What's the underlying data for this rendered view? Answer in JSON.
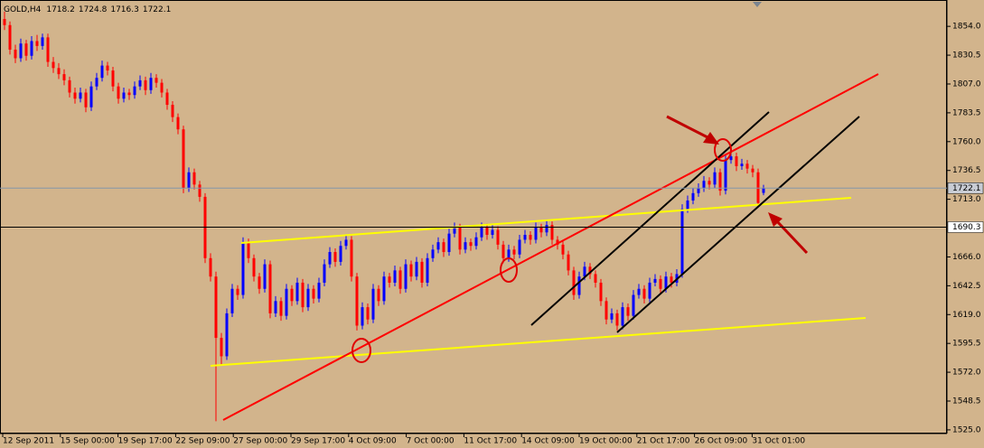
{
  "chart_data": {
    "type": "candlestick",
    "title": "GOLD,H4",
    "up_color": "#0000ff",
    "down_color": "#ff0000",
    "ylim": [
      1522,
      1874
    ],
    "yticks": [
      {
        "value": 1854,
        "label": "1854.0"
      },
      {
        "value": 1830.5,
        "label": "1830.5"
      },
      {
        "value": 1807,
        "label": "1807.0"
      },
      {
        "value": 1783.5,
        "label": "1783.5"
      },
      {
        "value": 1760,
        "label": "1760.0"
      },
      {
        "value": 1736.5,
        "label": "1736.5"
      },
      {
        "value": 1713,
        "label": "1713.0"
      },
      {
        "value": 1666,
        "label": "1666.0"
      },
      {
        "value": 1642.5,
        "label": "1642.5"
      },
      {
        "value": 1619,
        "label": "1619.0"
      },
      {
        "value": 1595.5,
        "label": "1595.5"
      },
      {
        "value": 1572,
        "label": "1572.0"
      },
      {
        "value": 1548.5,
        "label": "1548.5"
      },
      {
        "value": 1525,
        "label": "1525.0"
      }
    ],
    "price_lines": [
      {
        "value": 1722.1,
        "color": "#8496a8"
      },
      {
        "value": 1690.3,
        "color": "#000000"
      }
    ],
    "x_labels": [
      "12 Sep 2011",
      "15 Sep 00:00",
      "19 Sep 17:00",
      "22 Sep 09:00",
      "27 Sep 00:00",
      "29 Sep 17:00",
      "4 Oct 09:00",
      "7 Oct 00:00",
      "11 Oct 17:00",
      "14 Oct 09:00",
      "19 Oct 00:00",
      "21 Oct 17:00",
      "26 Oct 09:00",
      "31 Oct 01:00"
    ],
    "candles": [
      [
        1860,
        1866,
        1851,
        1855
      ],
      [
        1855,
        1858,
        1831,
        1835
      ],
      [
        1835,
        1839,
        1824,
        1828
      ],
      [
        1828,
        1844,
        1825,
        1840
      ],
      [
        1840,
        1843,
        1826,
        1830
      ],
      [
        1830,
        1846,
        1827,
        1842
      ],
      [
        1842,
        1847,
        1834,
        1838
      ],
      [
        1838,
        1848,
        1835,
        1845
      ],
      [
        1845,
        1848,
        1821,
        1825
      ],
      [
        1825,
        1829,
        1816,
        1820
      ],
      [
        1820,
        1824,
        1811,
        1815
      ],
      [
        1815,
        1819,
        1806,
        1810
      ],
      [
        1810,
        1813,
        1796,
        1800
      ],
      [
        1800,
        1804,
        1791,
        1795
      ],
      [
        1795,
        1804,
        1792,
        1800
      ],
      [
        1800,
        1803,
        1784,
        1788
      ],
      [
        1788,
        1809,
        1785,
        1805
      ],
      [
        1805,
        1816,
        1802,
        1812
      ],
      [
        1812,
        1826,
        1809,
        1822
      ],
      [
        1822,
        1825,
        1814,
        1818
      ],
      [
        1818,
        1821,
        1801,
        1805
      ],
      [
        1805,
        1808,
        1791,
        1795
      ],
      [
        1795,
        1804,
        1792,
        1800
      ],
      [
        1800,
        1803,
        1794,
        1798
      ],
      [
        1798,
        1809,
        1795,
        1805
      ],
      [
        1805,
        1814,
        1802,
        1810
      ],
      [
        1810,
        1813,
        1798,
        1802
      ],
      [
        1802,
        1816,
        1799,
        1812
      ],
      [
        1812,
        1815,
        1804,
        1808
      ],
      [
        1808,
        1811,
        1796,
        1800
      ],
      [
        1800,
        1803,
        1786,
        1790
      ],
      [
        1790,
        1793,
        1776,
        1780
      ],
      [
        1780,
        1783,
        1766,
        1770
      ],
      [
        1770,
        1773,
        1718,
        1722
      ],
      [
        1722,
        1739,
        1719,
        1735
      ],
      [
        1735,
        1738,
        1721,
        1725
      ],
      [
        1725,
        1728,
        1711,
        1715
      ],
      [
        1715,
        1718,
        1661,
        1665
      ],
      [
        1665,
        1669,
        1646,
        1650
      ],
      [
        1650,
        1654,
        1532,
        1600
      ],
      [
        1600,
        1604,
        1578,
        1585
      ],
      [
        1585,
        1624,
        1582,
        1620
      ],
      [
        1620,
        1644,
        1617,
        1640
      ],
      [
        1640,
        1643,
        1631,
        1635
      ],
      [
        1635,
        1682,
        1632,
        1678
      ],
      [
        1678,
        1681,
        1661,
        1665
      ],
      [
        1665,
        1668,
        1646,
        1650
      ],
      [
        1650,
        1653,
        1636,
        1640
      ],
      [
        1640,
        1664,
        1637,
        1660
      ],
      [
        1660,
        1663,
        1616,
        1620
      ],
      [
        1620,
        1634,
        1617,
        1630
      ],
      [
        1630,
        1633,
        1614,
        1618
      ],
      [
        1618,
        1644,
        1615,
        1640
      ],
      [
        1640,
        1643,
        1626,
        1630
      ],
      [
        1630,
        1649,
        1627,
        1645
      ],
      [
        1645,
        1648,
        1621,
        1625
      ],
      [
        1625,
        1644,
        1622,
        1640
      ],
      [
        1640,
        1643,
        1628,
        1632
      ],
      [
        1632,
        1649,
        1629,
        1645
      ],
      [
        1645,
        1664,
        1642,
        1660
      ],
      [
        1660,
        1674,
        1657,
        1670
      ],
      [
        1670,
        1673,
        1658,
        1662
      ],
      [
        1662,
        1679,
        1659,
        1675
      ],
      [
        1675,
        1684,
        1672,
        1680
      ],
      [
        1680,
        1683,
        1646,
        1650
      ],
      [
        1650,
        1653,
        1606,
        1610
      ],
      [
        1610,
        1629,
        1607,
        1625
      ],
      [
        1625,
        1628,
        1611,
        1615
      ],
      [
        1615,
        1644,
        1612,
        1640
      ],
      [
        1640,
        1643,
        1626,
        1630
      ],
      [
        1630,
        1654,
        1627,
        1650
      ],
      [
        1650,
        1653,
        1641,
        1645
      ],
      [
        1645,
        1659,
        1642,
        1655
      ],
      [
        1655,
        1658,
        1636,
        1640
      ],
      [
        1640,
        1664,
        1637,
        1660
      ],
      [
        1660,
        1663,
        1646,
        1650
      ],
      [
        1650,
        1666,
        1647,
        1662
      ],
      [
        1662,
        1665,
        1641,
        1645
      ],
      [
        1645,
        1669,
        1642,
        1665
      ],
      [
        1665,
        1676,
        1662,
        1672
      ],
      [
        1672,
        1682,
        1669,
        1678
      ],
      [
        1678,
        1681,
        1666,
        1670
      ],
      [
        1670,
        1689,
        1667,
        1685
      ],
      [
        1685,
        1694,
        1682,
        1690
      ],
      [
        1690,
        1693,
        1668,
        1672
      ],
      [
        1672,
        1682,
        1669,
        1678
      ],
      [
        1678,
        1681,
        1671,
        1675
      ],
      [
        1675,
        1686,
        1672,
        1682
      ],
      [
        1682,
        1694,
        1679,
        1690
      ],
      [
        1690,
        1693,
        1680,
        1684
      ],
      [
        1684,
        1692,
        1681,
        1688
      ],
      [
        1688,
        1691,
        1672,
        1676
      ],
      [
        1676,
        1679,
        1661,
        1665
      ],
      [
        1665,
        1676,
        1662,
        1672
      ],
      [
        1672,
        1675,
        1664,
        1668
      ],
      [
        1668,
        1684,
        1665,
        1680
      ],
      [
        1680,
        1688,
        1677,
        1684
      ],
      [
        1684,
        1687,
        1676,
        1680
      ],
      [
        1680,
        1694,
        1677,
        1690
      ],
      [
        1690,
        1693,
        1682,
        1686
      ],
      [
        1686,
        1696,
        1683,
        1692
      ],
      [
        1692,
        1695,
        1676,
        1680
      ],
      [
        1680,
        1683,
        1672,
        1676
      ],
      [
        1676,
        1679,
        1664,
        1668
      ],
      [
        1668,
        1671,
        1651,
        1655
      ],
      [
        1655,
        1658,
        1631,
        1635
      ],
      [
        1635,
        1654,
        1632,
        1650
      ],
      [
        1650,
        1662,
        1647,
        1658
      ],
      [
        1658,
        1661,
        1648,
        1652
      ],
      [
        1652,
        1655,
        1641,
        1645
      ],
      [
        1645,
        1648,
        1626,
        1630
      ],
      [
        1630,
        1633,
        1611,
        1615
      ],
      [
        1615,
        1624,
        1612,
        1620
      ],
      [
        1620,
        1623,
        1606,
        1610
      ],
      [
        1610,
        1629,
        1607,
        1625
      ],
      [
        1625,
        1628,
        1614,
        1618
      ],
      [
        1618,
        1639,
        1615,
        1635
      ],
      [
        1635,
        1644,
        1632,
        1640
      ],
      [
        1640,
        1643,
        1628,
        1632
      ],
      [
        1632,
        1649,
        1629,
        1645
      ],
      [
        1645,
        1652,
        1642,
        1648
      ],
      [
        1648,
        1651,
        1636,
        1640
      ],
      [
        1640,
        1654,
        1637,
        1650
      ],
      [
        1650,
        1653,
        1641,
        1645
      ],
      [
        1645,
        1656,
        1642,
        1652
      ],
      [
        1652,
        1709,
        1649,
        1705
      ],
      [
        1705,
        1716,
        1702,
        1712
      ],
      [
        1712,
        1722,
        1709,
        1718
      ],
      [
        1718,
        1726,
        1715,
        1722
      ],
      [
        1722,
        1732,
        1719,
        1728
      ],
      [
        1728,
        1731,
        1721,
        1725
      ],
      [
        1725,
        1739,
        1722,
        1735
      ],
      [
        1735,
        1738,
        1716,
        1720
      ],
      [
        1720,
        1749,
        1717,
        1745
      ],
      [
        1745,
        1755,
        1742,
        1748
      ],
      [
        1748,
        1751,
        1736,
        1740
      ],
      [
        1740,
        1746,
        1737,
        1742
      ],
      [
        1742,
        1745,
        1734,
        1738
      ],
      [
        1738,
        1741,
        1731,
        1735
      ],
      [
        1735,
        1738,
        1706,
        1710
      ],
      [
        1718.2,
        1724.8,
        1716.3,
        1722.1
      ]
    ]
  }
}
